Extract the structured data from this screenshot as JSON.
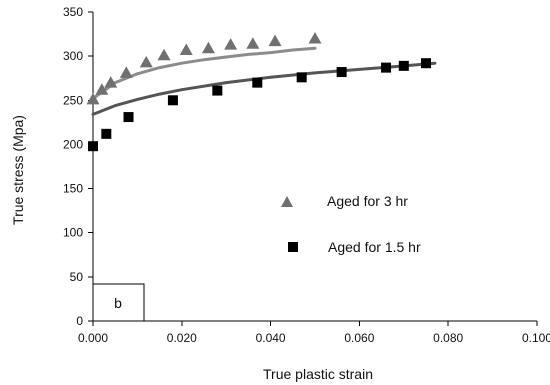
{
  "chart_data": {
    "type": "scatter",
    "title": "",
    "xlabel": "True plastic strain",
    "ylabel": "True stress (Mpa)",
    "xlim": [
      0,
      0.1
    ],
    "ylim": [
      0,
      350
    ],
    "x_ticks": [
      0,
      0.02,
      0.04,
      0.06,
      0.08,
      0.1
    ],
    "x_tick_labels": [
      "0.000",
      "0.020",
      "0.040",
      "0.060",
      "0.080",
      "0.100"
    ],
    "y_ticks": [
      0,
      50,
      100,
      150,
      200,
      250,
      300,
      350
    ],
    "y_tick_labels": [
      "0",
      "50",
      "100",
      "150",
      "200",
      "250",
      "300",
      "350"
    ],
    "grid": false,
    "legend_position": "center-right",
    "panel_label": "b",
    "series": [
      {
        "name": "Aged for 3 hr",
        "marker": "triangle",
        "color": "#707070",
        "points": [
          [
            0.0,
            251
          ],
          [
            0.002,
            262
          ],
          [
            0.004,
            270
          ],
          [
            0.0075,
            281
          ],
          [
            0.012,
            293
          ],
          [
            0.016,
            301
          ],
          [
            0.021,
            307
          ],
          [
            0.026,
            309
          ],
          [
            0.031,
            313
          ],
          [
            0.036,
            314
          ],
          [
            0.041,
            317
          ],
          [
            0.05,
            320
          ]
        ],
        "fit": [
          [
            0.0,
            252
          ],
          [
            0.005,
            270
          ],
          [
            0.01,
            280
          ],
          [
            0.015,
            287
          ],
          [
            0.02,
            292
          ],
          [
            0.025,
            296
          ],
          [
            0.03,
            299
          ],
          [
            0.035,
            302
          ],
          [
            0.04,
            304
          ],
          [
            0.045,
            307
          ],
          [
            0.05,
            309
          ]
        ],
        "fit_color": "#8c8c8c"
      },
      {
        "name": "Aged for 1.5 hr",
        "marker": "square",
        "color": "#000000",
        "points": [
          [
            0.0,
            198
          ],
          [
            0.003,
            212
          ],
          [
            0.008,
            231
          ],
          [
            0.018,
            250
          ],
          [
            0.028,
            261
          ],
          [
            0.037,
            270
          ],
          [
            0.047,
            276
          ],
          [
            0.056,
            282
          ],
          [
            0.066,
            287
          ],
          [
            0.07,
            289
          ],
          [
            0.075,
            292
          ]
        ],
        "fit": [
          [
            0.0,
            234
          ],
          [
            0.005,
            244
          ],
          [
            0.01,
            251
          ],
          [
            0.015,
            257
          ],
          [
            0.02,
            262
          ],
          [
            0.03,
            270
          ],
          [
            0.04,
            276
          ],
          [
            0.05,
            281
          ],
          [
            0.06,
            285
          ],
          [
            0.07,
            289
          ],
          [
            0.077,
            292
          ]
        ],
        "fit_color": "#555555"
      }
    ]
  }
}
